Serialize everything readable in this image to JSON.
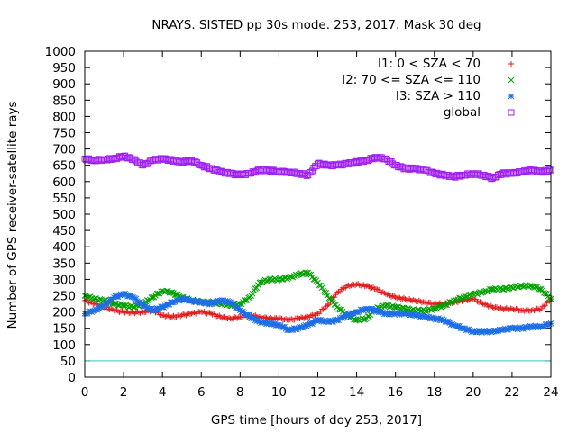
{
  "chart_data": {
    "type": "scatter",
    "title": "NRAYS. SISTED pp 30s mode. 253, 2017. Mask 30 deg",
    "xlabel": "GPS time [hours of doy 253, 2017]",
    "ylabel": "Number of GPS receiver-satellite rays",
    "xlim": [
      0,
      24
    ],
    "ylim": [
      0,
      1000
    ],
    "x_ticks": [
      0,
      2,
      4,
      6,
      8,
      10,
      12,
      14,
      16,
      18,
      20,
      22,
      24
    ],
    "y_ticks": [
      0,
      50,
      100,
      150,
      200,
      250,
      300,
      350,
      400,
      450,
      500,
      550,
      600,
      650,
      700,
      750,
      800,
      850,
      900,
      950,
      1000
    ],
    "grid": false,
    "legend_position": "top-right",
    "reference_line": {
      "y": 50,
      "color": "#3fc8c8"
    },
    "series": [
      {
        "name": "I1: 0 < SZA < 70",
        "marker": "plus",
        "color": "#e41a1c",
        "x": [
          0,
          0.5,
          1,
          1.5,
          2,
          2.5,
          3,
          3.5,
          4,
          4.5,
          5,
          5.5,
          6,
          6.5,
          7,
          7.5,
          8,
          8.5,
          9,
          9.5,
          10,
          10.5,
          11,
          11.5,
          12,
          12.5,
          13,
          13.5,
          14,
          14.5,
          15,
          15.5,
          16,
          16.5,
          17,
          17.5,
          18,
          18.5,
          19,
          19.5,
          20,
          20.5,
          21,
          21.5,
          22,
          22.5,
          23,
          23.5,
          24
        ],
        "y": [
          235,
          225,
          215,
          205,
          200,
          198,
          200,
          205,
          190,
          185,
          190,
          195,
          200,
          195,
          185,
          180,
          185,
          190,
          185,
          180,
          180,
          175,
          180,
          185,
          195,
          220,
          260,
          280,
          285,
          280,
          270,
          255,
          245,
          240,
          235,
          230,
          225,
          225,
          230,
          235,
          240,
          225,
          215,
          210,
          210,
          205,
          205,
          210,
          240
        ]
      },
      {
        "name": "I2: 70 <= SZA <= 110",
        "marker": "cross",
        "color": "#00a000",
        "x": [
          0,
          0.5,
          1,
          1.5,
          2,
          2.5,
          3,
          3.5,
          4,
          4.5,
          5,
          5.5,
          6,
          6.5,
          7,
          7.5,
          8,
          8.5,
          9,
          9.5,
          10,
          10.5,
          11,
          11.5,
          12,
          12.5,
          13,
          13.5,
          14,
          14.5,
          15,
          15.5,
          16,
          16.5,
          17,
          17.5,
          18,
          18.5,
          19,
          19.5,
          20,
          20.5,
          21,
          21.5,
          22,
          22.5,
          23,
          23.5,
          24
        ],
        "y": [
          250,
          240,
          235,
          225,
          220,
          215,
          225,
          245,
          265,
          260,
          245,
          235,
          230,
          230,
          225,
          220,
          225,
          245,
          290,
          300,
          300,
          305,
          315,
          320,
          290,
          250,
          215,
          190,
          175,
          180,
          210,
          220,
          215,
          210,
          205,
          205,
          210,
          220,
          235,
          245,
          255,
          260,
          270,
          270,
          275,
          280,
          280,
          270,
          240
        ]
      },
      {
        "name": "I3: SZA > 110",
        "marker": "star",
        "color": "#1e6fe6",
        "x": [
          0,
          0.5,
          1,
          1.5,
          2,
          2.5,
          3,
          3.5,
          4,
          4.5,
          5,
          5.5,
          6,
          6.5,
          7,
          7.5,
          8,
          8.5,
          9,
          9.5,
          10,
          10.5,
          11,
          11.5,
          12,
          12.5,
          13,
          13.5,
          14,
          14.5,
          15,
          15.5,
          16,
          16.5,
          17,
          17.5,
          18,
          18.5,
          19,
          19.5,
          20,
          20.5,
          21,
          21.5,
          22,
          22.5,
          23,
          23.5,
          24
        ],
        "y": [
          195,
          205,
          220,
          245,
          255,
          245,
          220,
          205,
          215,
          230,
          240,
          235,
          230,
          225,
          235,
          230,
          205,
          185,
          170,
          165,
          160,
          145,
          150,
          160,
          175,
          170,
          175,
          190,
          200,
          210,
          205,
          195,
          195,
          195,
          190,
          185,
          180,
          175,
          160,
          150,
          140,
          140,
          140,
          145,
          150,
          150,
          155,
          155,
          165
        ]
      },
      {
        "name": "global",
        "marker": "open-square",
        "color": "#a020f0",
        "x": [
          0,
          0.5,
          1,
          1.5,
          2,
          2.5,
          3,
          3.5,
          4,
          4.5,
          5,
          5.5,
          6,
          6.5,
          7,
          7.5,
          8,
          8.5,
          9,
          9.5,
          10,
          10.5,
          11,
          11.5,
          12,
          12.5,
          13,
          13.5,
          14,
          14.5,
          15,
          15.5,
          16,
          16.5,
          17,
          17.5,
          18,
          18.5,
          19,
          19.5,
          20,
          20.5,
          21,
          21.5,
          22,
          22.5,
          23,
          23.5,
          24
        ],
        "y": [
          670,
          665,
          668,
          670,
          678,
          668,
          650,
          665,
          670,
          665,
          660,
          665,
          650,
          640,
          630,
          625,
          620,
          625,
          635,
          635,
          630,
          630,
          625,
          620,
          655,
          650,
          650,
          655,
          660,
          665,
          675,
          670,
          650,
          640,
          640,
          635,
          625,
          620,
          615,
          620,
          625,
          620,
          610,
          625,
          625,
          630,
          635,
          630,
          635
        ]
      }
    ]
  }
}
